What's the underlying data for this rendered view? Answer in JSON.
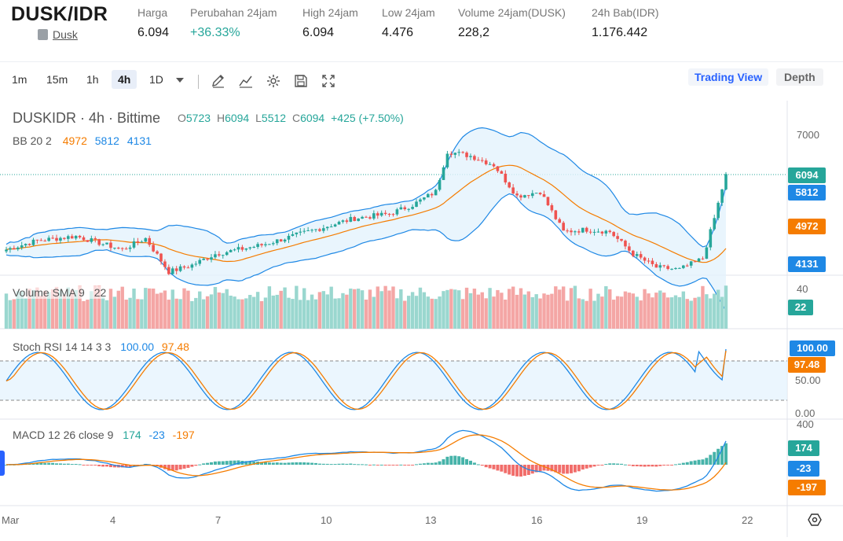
{
  "header": {
    "pair": "DUSK/IDR",
    "coin_link": "Dusk",
    "stats": [
      {
        "label": "Harga",
        "value": "6.094"
      },
      {
        "label": "Perubahan 24jam",
        "value": "+36.33%"
      },
      {
        "label": "High 24jam",
        "value": "6.094"
      },
      {
        "label": "Low 24jam",
        "value": "4.476"
      },
      {
        "label": "Volume 24jam(DUSK)",
        "value": "228,2"
      },
      {
        "label": "24h Bab(IDR)",
        "value": "1.176.442"
      }
    ]
  },
  "toolbar": {
    "intervals": [
      "1m",
      "15m",
      "1h",
      "4h",
      "1D"
    ],
    "active_interval": "4h",
    "icons": [
      "pencil-icon",
      "line-chart-icon",
      "gear-icon",
      "save-icon",
      "fullscreen-icon"
    ],
    "trading_view": "Trading View",
    "depth": "Depth"
  },
  "legend": {
    "symbol": "DUSKIDR · 4h · Bittime",
    "o_label": "O",
    "o": "5723",
    "h_label": "H",
    "h": "6094",
    "l_label": "L",
    "l": "5512",
    "c_label": "C",
    "c": "6094",
    "chg": "+425 (+7.50%)",
    "bb_label": "BB 20 2",
    "bb_mid": "4972",
    "bb_up": "5812",
    "bb_low": "4131",
    "vol_label": "Volume SMA 9",
    "vol_val": "22",
    "stoch_label": "Stoch RSI 14 14 3 3",
    "stoch_k": "100.00",
    "stoch_d": "97.48",
    "macd_label": "MACD 12 26 close 9",
    "macd_a": "174",
    "macd_b": "-23",
    "macd_c": "-197"
  },
  "axis": {
    "price_7000": "7000",
    "vol_40": "40",
    "stoch_50": "50.00",
    "stoch_0": "0.00",
    "macd_400": "400",
    "dates": [
      "Mar",
      "4",
      "7",
      "10",
      "13",
      "16",
      "19",
      "22"
    ]
  },
  "tags": {
    "last": "6094",
    "bb_up": "5812",
    "bb_mid": "4972",
    "bb_low": "4131",
    "vol": "22",
    "stoch_k": "100.00",
    "stoch_d": "97.48",
    "macd_a": "174",
    "macd_b": "-23",
    "macd_c": "-197"
  },
  "colors": {
    "up": "#26a69a",
    "down": "#ef5350",
    "bb_mid": "#f57c00",
    "bb_band": "#1e88e5",
    "stoch_k": "#1e88e5",
    "stoch_d": "#f57c00"
  },
  "chart_data": {
    "type": "candlestick",
    "symbol": "DUSKIDR",
    "interval": "4h",
    "last": {
      "open": 5723,
      "high": 6094,
      "low": 5512,
      "close": 6094
    },
    "x_ticks": [
      "Mar",
      "4",
      "7",
      "10",
      "13",
      "16",
      "19",
      "22"
    ],
    "close_anchors": [
      [
        0,
        4400
      ],
      [
        8,
        4600
      ],
      [
        18,
        4700
      ],
      [
        30,
        4400
      ],
      [
        36,
        4650
      ],
      [
        42,
        3900
      ],
      [
        48,
        4050
      ],
      [
        54,
        4300
      ],
      [
        66,
        4500
      ],
      [
        78,
        4800
      ],
      [
        90,
        5100
      ],
      [
        99,
        5200
      ],
      [
        105,
        5400
      ],
      [
        111,
        5700
      ],
      [
        114,
        6600
      ],
      [
        120,
        6500
      ],
      [
        126,
        6300
      ],
      [
        132,
        5600
      ],
      [
        138,
        5700
      ],
      [
        144,
        4800
      ],
      [
        150,
        4850
      ],
      [
        156,
        4800
      ],
      [
        162,
        4300
      ],
      [
        168,
        4000
      ],
      [
        174,
        3950
      ],
      [
        180,
        4200
      ],
      [
        183,
        5100
      ],
      [
        186,
        6094
      ]
    ],
    "bollinger": {
      "mid": 4972,
      "upper": 5812,
      "lower": 4131
    },
    "volume_sma": 22,
    "stoch_rsi": {
      "k": 100.0,
      "d": 97.48
    },
    "macd": {
      "values": [
        174,
        -23,
        -197
      ]
    }
  }
}
